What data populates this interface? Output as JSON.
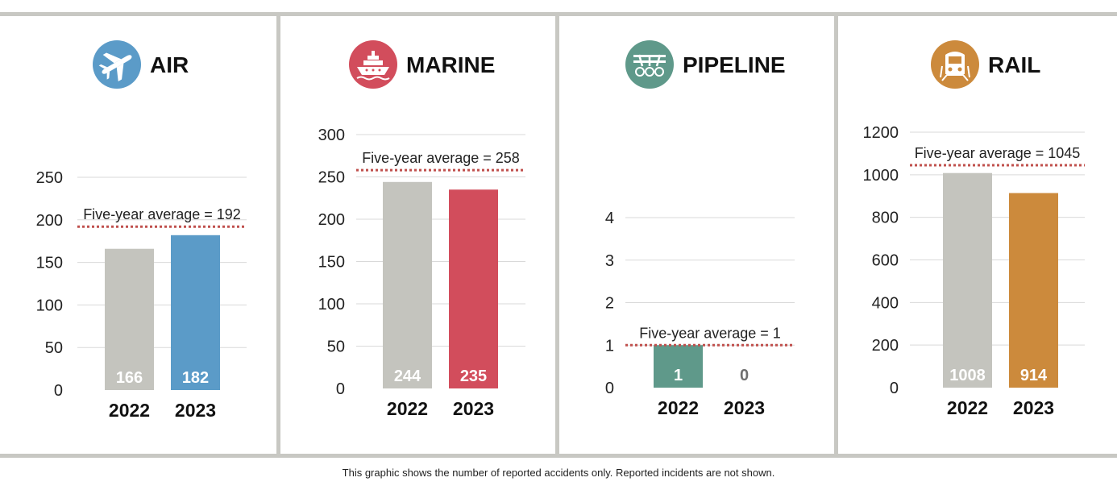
{
  "footnote": "This graphic shows the number of reported accidents only. Reported incidents are not shown.",
  "average_line_color": "#c0504d",
  "chart_data": [
    {
      "type": "bar",
      "title": "AIR",
      "icon": "airplane-icon",
      "accent": "#5b9bc8",
      "icon_color": "#5b9bc8",
      "categories": [
        "2022",
        "2023"
      ],
      "values": [
        166,
        182
      ],
      "bar_colors": [
        "#c4c4be",
        "#5b9bc8"
      ],
      "ylim": [
        0,
        250
      ],
      "yticks": [
        0,
        50,
        100,
        150,
        200,
        250
      ],
      "average": 192,
      "average_label": "Five-year average = 192",
      "grid": true
    },
    {
      "type": "bar",
      "title": "MARINE",
      "icon": "ship-icon",
      "accent": "#d24d5c",
      "icon_color": "#d24d5c",
      "categories": [
        "2022",
        "2023"
      ],
      "values": [
        244,
        235
      ],
      "bar_colors": [
        "#c4c4be",
        "#d24d5c"
      ],
      "ylim": [
        0,
        300
      ],
      "yticks": [
        0,
        50,
        100,
        150,
        200,
        250,
        300
      ],
      "average": 258,
      "average_label": "Five-year average = 258",
      "grid": true
    },
    {
      "type": "bar",
      "title": "PIPELINE",
      "icon": "pipeline-icon",
      "accent": "#5f998a",
      "icon_color": "#5f998a",
      "categories": [
        "2022",
        "2023"
      ],
      "values": [
        1,
        0
      ],
      "bar_colors": [
        "#5f998a",
        "#5f998a"
      ],
      "ylim": [
        0,
        4
      ],
      "yticks": [
        0,
        1,
        2,
        3,
        4
      ],
      "average": 1,
      "average_label": "Five-year average = 1",
      "grid": true
    },
    {
      "type": "bar",
      "title": "RAIL",
      "icon": "train-icon",
      "accent": "#cc8a3c",
      "icon_color": "#cc8a3c",
      "categories": [
        "2022",
        "2023"
      ],
      "values": [
        1008,
        914
      ],
      "bar_colors": [
        "#c4c4be",
        "#cc8a3c"
      ],
      "ylim": [
        0,
        1200
      ],
      "yticks": [
        0,
        200,
        400,
        600,
        800,
        1000,
        1200
      ],
      "average": 1045,
      "average_label": "Five-year average = 1045",
      "grid": true
    }
  ]
}
